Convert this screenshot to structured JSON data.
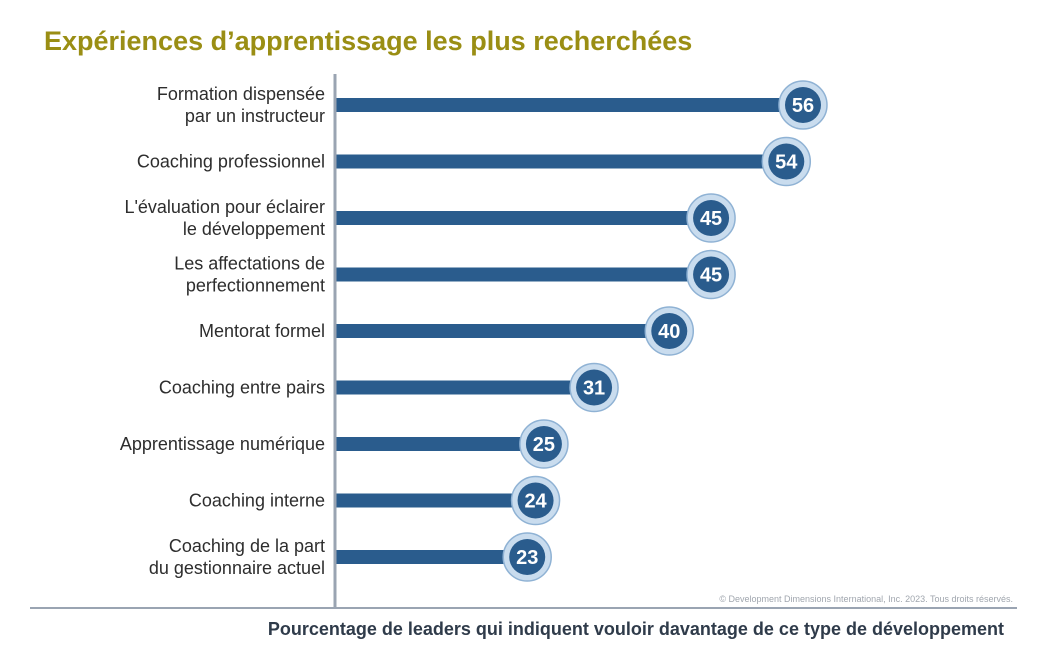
{
  "chart_data": {
    "type": "bar",
    "orientation": "horizontal",
    "title": "Expériences d’apprentissage les plus recherchées",
    "xlabel": "Pourcentage de leaders qui indiquent vouloir davantage de ce type de développement",
    "ylabel": "",
    "categories": [
      [
        "Formation dispensée",
        "par un instructeur"
      ],
      [
        "Coaching professionnel"
      ],
      [
        "L'évaluation pour éclairer",
        "le développement"
      ],
      [
        "Les affectations de",
        "perfectionnement"
      ],
      [
        "Mentorat formel"
      ],
      [
        "Coaching entre pairs"
      ],
      [
        "Apprentissage numérique"
      ],
      [
        "Coaching interne"
      ],
      [
        "Coaching de la part",
        "du gestionnaire actuel"
      ]
    ],
    "values": [
      56,
      54,
      45,
      45,
      40,
      31,
      25,
      24,
      23
    ],
    "xlim": [
      0,
      60
    ],
    "grid": false,
    "legend": "none",
    "colors": {
      "bar": "#2a5c8d",
      "badge_fill": "#2a5c8d",
      "badge_ring": "#c9dcee",
      "axis": "#9aa4b2",
      "title": "#9a8e14"
    }
  },
  "copyright": "© Development Dimensions International, Inc. 2023. Tous droits réservés."
}
